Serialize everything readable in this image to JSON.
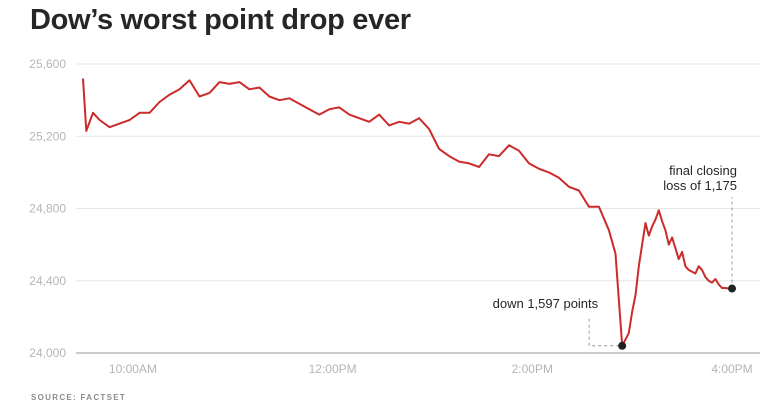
{
  "title": "Dow’s worst point drop ever",
  "source": "SOURCE: FACTSET",
  "chart_data": {
    "type": "line",
    "title": "Dow’s worst point drop ever",
    "xlabel": "",
    "ylabel": "",
    "x_ticks": [
      "10:00AM",
      "12:00PM",
      "2:00PM",
      "4:00PM"
    ],
    "y_ticks": [
      "24,000",
      "24,400",
      "24,800",
      "25,200",
      "25,600"
    ],
    "ylim": [
      24000,
      25650
    ],
    "grid": "horizontal",
    "series_color": "#cc2b2b",
    "series": [
      {
        "x": [
          "9:30AM",
          "9:32AM",
          "9:36AM",
          "9:40AM",
          "9:46AM",
          "9:52AM",
          "9:58AM",
          "10:04AM",
          "10:10AM",
          "10:16AM",
          "10:22AM",
          "10:28AM",
          "10:34AM",
          "10:40AM",
          "10:46AM",
          "10:52AM",
          "10:58AM",
          "11:04AM",
          "11:10AM",
          "11:16AM",
          "11:22AM",
          "11:28AM",
          "11:34AM",
          "11:40AM",
          "11:46AM",
          "11:52AM",
          "11:58AM",
          "12:04PM",
          "12:10PM",
          "12:16PM",
          "12:22PM",
          "12:28PM",
          "12:34PM",
          "12:40PM",
          "12:46PM",
          "12:52PM",
          "12:58PM",
          "1:04PM",
          "1:10PM",
          "1:16PM",
          "1:22PM",
          "1:28PM",
          "1:34PM",
          "1:40PM",
          "1:46PM",
          "1:52PM",
          "1:58PM",
          "2:04PM",
          "2:10PM",
          "2:16PM",
          "2:22PM",
          "2:28PM",
          "2:34PM",
          "2:40PM",
          "2:46PM",
          "2:50PM",
          "2:54PM",
          "2:58PM",
          "3:00PM",
          "3:02PM",
          "3:04PM",
          "3:06PM",
          "3:08PM",
          "3:10PM",
          "3:12PM",
          "3:14PM",
          "3:16PM",
          "3:18PM",
          "3:20PM",
          "3:22PM",
          "3:24PM",
          "3:26PM",
          "3:28PM",
          "3:30PM",
          "3:32PM",
          "3:34PM",
          "3:36PM",
          "3:38PM",
          "3:40PM",
          "3:42PM",
          "3:44PM",
          "3:46PM",
          "3:48PM",
          "3:50PM",
          "3:52PM",
          "3:54PM",
          "3:56PM",
          "3:58PM",
          "4:00PM"
        ],
        "values": [
          25520,
          25230,
          25330,
          25290,
          25250,
          25270,
          25290,
          25330,
          25330,
          25390,
          25430,
          25460,
          25510,
          25420,
          25440,
          25500,
          25490,
          25500,
          25460,
          25470,
          25420,
          25400,
          25410,
          25380,
          25350,
          25320,
          25350,
          25360,
          25320,
          25300,
          25280,
          25320,
          25260,
          25280,
          25270,
          25300,
          25240,
          25130,
          25090,
          25060,
          25050,
          25030,
          25100,
          25090,
          25150,
          25120,
          25050,
          25020,
          25000,
          24970,
          24920,
          24900,
          24810,
          24810,
          24680,
          24550,
          24040,
          24110,
          24230,
          24320,
          24480,
          24600,
          24720,
          24650,
          24700,
          24740,
          24790,
          24730,
          24680,
          24600,
          24640,
          24580,
          24520,
          24560,
          24480,
          24460,
          24450,
          24440,
          24480,
          24460,
          24420,
          24400,
          24390,
          24410,
          24380,
          24360,
          24360,
          24357,
          24357
        ]
      }
    ],
    "annotations": [
      {
        "text": "down 1,597 points",
        "x": "2:54PM",
        "value": 24040
      },
      {
        "text_line1": "final closing",
        "text_line2": "loss of 1,175",
        "x": "4:00PM",
        "value": 24357
      }
    ]
  }
}
